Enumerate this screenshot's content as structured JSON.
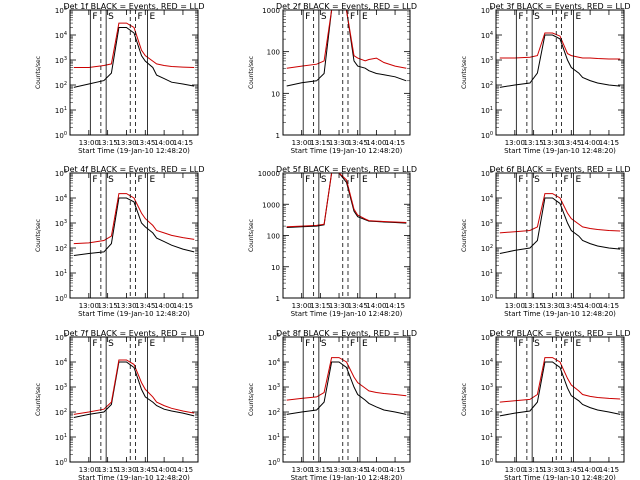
{
  "chart_data": [
    {
      "type": "line",
      "title": "Det 1f BLACK = Events, RED = LLD",
      "ylabel": "Counts/sec",
      "xlabel": "Start Time (19-Jan-10 12:48:20)",
      "xticks": [
        "13:00",
        "13:15",
        "13:30",
        "13:45",
        "14:00",
        "14:15"
      ],
      "scale": "log",
      "yticks": [
        "10^0",
        "10^1",
        "10^2",
        "10^3",
        "10^4",
        "10^5"
      ],
      "ylim": [
        1,
        100000
      ],
      "markers": [
        "F",
        "S",
        "F",
        "E"
      ],
      "series": [
        {
          "color": "#000000",
          "x": [
            12.8,
            13.0,
            13.2,
            13.3,
            13.4,
            13.5,
            13.6,
            13.7,
            13.75,
            13.85,
            13.9,
            14.0,
            14.1,
            14.25,
            14.4
          ],
          "values": [
            80,
            110,
            150,
            300,
            20000,
            20000,
            12000,
            1500,
            900,
            500,
            250,
            180,
            130,
            110,
            90
          ]
        },
        {
          "color": "#cc0000",
          "x": [
            12.8,
            13.0,
            13.2,
            13.3,
            13.4,
            13.5,
            13.6,
            13.7,
            13.75,
            13.85,
            13.9,
            14.0,
            14.1,
            14.25,
            14.4
          ],
          "values": [
            500,
            500,
            600,
            700,
            30000,
            30000,
            20000,
            2500,
            1500,
            900,
            700,
            600,
            550,
            520,
            500
          ]
        }
      ]
    },
    {
      "type": "line",
      "title": "Det 2f BLACK = Events, RED = LLD",
      "ylabel": "Counts/sec",
      "xlabel": "Start Time (19-Jan-10 12:48:20)",
      "xticks": [
        "13:00",
        "13:15",
        "13:30",
        "13:45",
        "14:00",
        "14:15"
      ],
      "scale": "log",
      "yticks": [
        "1",
        "10",
        "100",
        "1000"
      ],
      "ylim": [
        1,
        1000
      ],
      "markers": [
        "F",
        "S",
        "F",
        "E"
      ],
      "series": [
        {
          "color": "#000000",
          "x": [
            12.8,
            13.0,
            13.2,
            13.3,
            13.4,
            13.5,
            13.6,
            13.7,
            13.75,
            13.85,
            13.9,
            14.0,
            14.1,
            14.25,
            14.4
          ],
          "values": [
            15,
            18,
            20,
            30,
            1000,
            1000,
            1000,
            60,
            45,
            40,
            35,
            30,
            28,
            25,
            20
          ]
        },
        {
          "color": "#cc0000",
          "x": [
            12.8,
            13.0,
            13.2,
            13.3,
            13.4,
            13.5,
            13.6,
            13.7,
            13.75,
            13.85,
            13.9,
            14.0,
            14.1,
            14.25,
            14.4
          ],
          "values": [
            40,
            45,
            50,
            60,
            1000,
            1000,
            1000,
            80,
            70,
            60,
            65,
            70,
            55,
            45,
            40
          ]
        }
      ]
    },
    {
      "type": "line",
      "title": "Det 3f BLACK = Events, RED = LLD",
      "ylabel": "Counts/sec",
      "xlabel": "Start Time (19-Jan-10 12:48:20)",
      "xticks": [
        "13:00",
        "13:15",
        "13:30",
        "13:45",
        "14:00",
        "14:15"
      ],
      "scale": "log",
      "yticks": [
        "10^0",
        "10^1",
        "10^2",
        "10^3",
        "10^4",
        "10^5"
      ],
      "ylim": [
        1,
        100000
      ],
      "markers": [
        "F",
        "S",
        "F",
        "E"
      ],
      "series": [
        {
          "color": "#000000",
          "x": [
            12.8,
            13.0,
            13.2,
            13.3,
            13.4,
            13.5,
            13.6,
            13.7,
            13.75,
            13.85,
            13.9,
            14.0,
            14.1,
            14.25,
            14.4
          ],
          "values": [
            80,
            100,
            120,
            300,
            10000,
            10000,
            7000,
            1000,
            500,
            300,
            200,
            150,
            120,
            100,
            90
          ]
        },
        {
          "color": "#cc0000",
          "x": [
            12.8,
            13.0,
            13.2,
            13.3,
            13.4,
            13.5,
            13.6,
            13.7,
            13.75,
            13.85,
            13.9,
            14.0,
            14.1,
            14.25,
            14.4
          ],
          "values": [
            1200,
            1200,
            1300,
            1500,
            12000,
            12000,
            9000,
            1800,
            1500,
            1300,
            1200,
            1200,
            1150,
            1100,
            1100
          ]
        }
      ]
    },
    {
      "type": "line",
      "title": "Det 4f BLACK = Events, RED = LLD",
      "ylabel": "Counts/sec",
      "xlabel": "Start Time (19-Jan-10 12:48:20)",
      "xticks": [
        "13:00",
        "13:15",
        "13:30",
        "13:45",
        "14:00",
        "14:15"
      ],
      "scale": "log",
      "yticks": [
        "10^0",
        "10^1",
        "10^2",
        "10^3",
        "10^4",
        "10^5"
      ],
      "ylim": [
        1,
        100000
      ],
      "markers": [
        "F",
        "S",
        "F",
        "E"
      ],
      "series": [
        {
          "color": "#000000",
          "x": [
            12.8,
            13.0,
            13.2,
            13.3,
            13.4,
            13.5,
            13.6,
            13.7,
            13.75,
            13.85,
            13.9,
            14.0,
            14.1,
            14.25,
            14.4
          ],
          "values": [
            50,
            60,
            70,
            150,
            10000,
            10000,
            7000,
            1000,
            700,
            400,
            250,
            180,
            130,
            90,
            70
          ]
        },
        {
          "color": "#cc0000",
          "x": [
            12.8,
            13.0,
            13.2,
            13.3,
            13.4,
            13.5,
            13.6,
            13.7,
            13.75,
            13.85,
            13.9,
            14.0,
            14.1,
            14.25,
            14.4
          ],
          "values": [
            150,
            160,
            200,
            300,
            15000,
            15000,
            10000,
            2500,
            1500,
            800,
            500,
            400,
            320,
            260,
            220
          ]
        }
      ]
    },
    {
      "type": "line",
      "title": "Det 5f BLACK = Events, RED = LLD",
      "ylabel": "Counts/sec",
      "xlabel": "Start Time (19-Jan-10 12:48:20)",
      "xticks": [
        "13:00",
        "13:15",
        "13:30",
        "13:45",
        "14:00",
        "14:15"
      ],
      "scale": "log",
      "yticks": [
        "1",
        "10",
        "100",
        "1000",
        "10000"
      ],
      "ylim": [
        1,
        10000
      ],
      "markers": [
        "F",
        "S",
        "F",
        "E"
      ],
      "series": [
        {
          "color": "#000000",
          "x": [
            12.8,
            13.0,
            13.2,
            13.3,
            13.4,
            13.5,
            13.6,
            13.7,
            13.75,
            13.85,
            13.9,
            14.0,
            14.1,
            14.25,
            14.4
          ],
          "values": [
            180,
            190,
            200,
            220,
            10000,
            10000,
            5000,
            600,
            400,
            320,
            290,
            280,
            270,
            260,
            250
          ]
        },
        {
          "color": "#cc0000",
          "x": [
            12.8,
            13.0,
            13.2,
            13.3,
            13.4,
            13.5,
            13.6,
            13.7,
            13.75,
            13.85,
            13.9,
            14.0,
            14.1,
            14.25,
            14.4
          ],
          "values": [
            190,
            200,
            210,
            230,
            10000,
            10000,
            6000,
            700,
            450,
            340,
            300,
            290,
            280,
            270,
            260
          ]
        }
      ]
    },
    {
      "type": "line",
      "title": "Det 6f BLACK = Events, RED = LLD",
      "ylabel": "Counts/sec",
      "xlabel": "Start Time (19-Jan-10 12:48:20)",
      "xticks": [
        "13:00",
        "13:15",
        "13:30",
        "13:45",
        "14:00",
        "14:15"
      ],
      "scale": "log",
      "yticks": [
        "10^0",
        "10^1",
        "10^2",
        "10^3",
        "10^4",
        "10^5"
      ],
      "ylim": [
        1,
        100000
      ],
      "markers": [
        "F",
        "S",
        "F",
        "E"
      ],
      "series": [
        {
          "color": "#000000",
          "x": [
            12.8,
            13.0,
            13.2,
            13.3,
            13.4,
            13.5,
            13.6,
            13.7,
            13.75,
            13.85,
            13.9,
            14.0,
            14.1,
            14.25,
            14.4
          ],
          "values": [
            60,
            80,
            100,
            200,
            10000,
            10000,
            6000,
            1000,
            500,
            300,
            200,
            150,
            120,
            100,
            90
          ]
        },
        {
          "color": "#cc0000",
          "x": [
            12.8,
            13.0,
            13.2,
            13.3,
            13.4,
            13.5,
            13.6,
            13.7,
            13.75,
            13.85,
            13.9,
            14.0,
            14.1,
            14.25,
            14.4
          ],
          "values": [
            400,
            450,
            500,
            700,
            15000,
            15000,
            10000,
            2500,
            1500,
            900,
            700,
            600,
            550,
            500,
            480
          ]
        }
      ]
    },
    {
      "type": "line",
      "title": "Det 7f BLACK = Events, RED = LLD",
      "ylabel": "Counts/sec",
      "xlabel": "Start Time (19-Jan-10 12:48:20)",
      "xticks": [
        "13:00",
        "13:15",
        "13:30",
        "13:45",
        "14:00",
        "14:15"
      ],
      "scale": "log",
      "yticks": [
        "10^0",
        "10^1",
        "10^2",
        "10^3",
        "10^4",
        "10^5"
      ],
      "ylim": [
        1,
        100000
      ],
      "markers": [
        "F",
        "S",
        "F",
        "E"
      ],
      "series": [
        {
          "color": "#000000",
          "x": [
            12.8,
            13.0,
            13.2,
            13.3,
            13.4,
            13.5,
            13.6,
            13.7,
            13.75,
            13.85,
            13.9,
            14.0,
            14.1,
            14.25,
            14.4
          ],
          "values": [
            60,
            80,
            100,
            200,
            10000,
            10000,
            6000,
            800,
            400,
            250,
            180,
            130,
            110,
            90,
            70
          ]
        },
        {
          "color": "#cc0000",
          "x": [
            12.8,
            13.0,
            13.2,
            13.3,
            13.4,
            13.5,
            13.6,
            13.7,
            13.75,
            13.85,
            13.9,
            14.0,
            14.1,
            14.25,
            14.4
          ],
          "values": [
            80,
            100,
            130,
            250,
            12000,
            12000,
            8000,
            1500,
            800,
            400,
            250,
            180,
            140,
            110,
            90
          ]
        }
      ]
    },
    {
      "type": "line",
      "title": "Det 8f BLACK = Events, RED = LLD",
      "ylabel": "Counts/sec",
      "xlabel": "Start Time (19-Jan-10 12:48:20)",
      "xticks": [
        "13:00",
        "13:15",
        "13:30",
        "13:45",
        "14:00",
        "14:15"
      ],
      "scale": "log",
      "yticks": [
        "10^0",
        "10^1",
        "10^2",
        "10^3",
        "10^4",
        "10^5"
      ],
      "ylim": [
        1,
        100000
      ],
      "markers": [
        "F",
        "S",
        "F",
        "E"
      ],
      "series": [
        {
          "color": "#000000",
          "x": [
            12.8,
            13.0,
            13.2,
            13.3,
            13.4,
            13.5,
            13.6,
            13.7,
            13.75,
            13.85,
            13.9,
            14.0,
            14.1,
            14.25,
            14.4
          ],
          "values": [
            80,
            100,
            120,
            250,
            10000,
            10000,
            6000,
            1000,
            500,
            300,
            220,
            160,
            120,
            100,
            80
          ]
        },
        {
          "color": "#cc0000",
          "x": [
            12.8,
            13.0,
            13.2,
            13.3,
            13.4,
            13.5,
            13.6,
            13.7,
            13.75,
            13.85,
            13.9,
            14.0,
            14.1,
            14.25,
            14.4
          ],
          "values": [
            300,
            350,
            400,
            600,
            15000,
            15000,
            10000,
            2500,
            1500,
            900,
            700,
            600,
            550,
            500,
            450
          ]
        }
      ]
    },
    {
      "type": "line",
      "title": "Det 9f BLACK = Events, RED = LLD",
      "ylabel": "Counts/sec",
      "xlabel": "Start Time (19-Jan-10 12:48:20)",
      "xticks": [
        "13:00",
        "13:15",
        "13:30",
        "13:45",
        "14:00",
        "14:15"
      ],
      "scale": "log",
      "yticks": [
        "10^0",
        "10^1",
        "10^2",
        "10^3",
        "10^4",
        "10^5"
      ],
      "ylim": [
        1,
        100000
      ],
      "markers": [
        "F",
        "S",
        "F",
        "E"
      ],
      "series": [
        {
          "color": "#000000",
          "x": [
            12.8,
            13.0,
            13.2,
            13.3,
            13.4,
            13.5,
            13.6,
            13.7,
            13.75,
            13.85,
            13.9,
            14.0,
            14.1,
            14.25,
            14.4
          ],
          "values": [
            70,
            90,
            110,
            250,
            10000,
            10000,
            6000,
            900,
            450,
            280,
            200,
            150,
            120,
            100,
            80
          ]
        },
        {
          "color": "#cc0000",
          "x": [
            12.8,
            13.0,
            13.2,
            13.3,
            13.4,
            13.5,
            13.6,
            13.7,
            13.75,
            13.85,
            13.9,
            14.0,
            14.1,
            14.25,
            14.4
          ],
          "values": [
            250,
            280,
            320,
            500,
            15000,
            15000,
            10000,
            2200,
            1200,
            700,
            500,
            420,
            380,
            350,
            330
          ]
        }
      ]
    }
  ]
}
